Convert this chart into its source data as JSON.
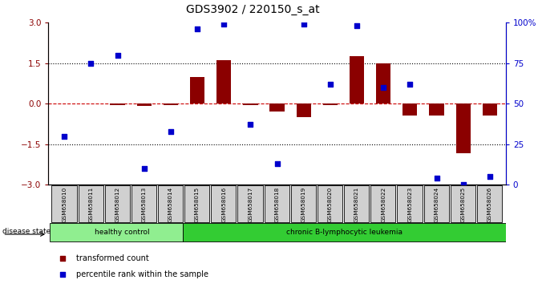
{
  "title": "GDS3902 / 220150_s_at",
  "samples": [
    "GSM658010",
    "GSM658011",
    "GSM658012",
    "GSM658013",
    "GSM658014",
    "GSM658015",
    "GSM658016",
    "GSM658017",
    "GSM658018",
    "GSM658019",
    "GSM658020",
    "GSM658021",
    "GSM658022",
    "GSM658023",
    "GSM658024",
    "GSM658025",
    "GSM658026"
  ],
  "red_values": [
    0.0,
    0.0,
    -0.05,
    -0.08,
    -0.05,
    1.0,
    1.6,
    -0.05,
    -0.3,
    -0.5,
    -0.05,
    1.75,
    1.5,
    -0.45,
    -0.45,
    -1.85,
    -0.45
  ],
  "blue_percentiles": [
    30,
    75,
    80,
    10,
    33,
    96,
    99,
    37,
    13,
    99,
    62,
    98,
    60,
    62,
    4,
    0,
    5
  ],
  "healthy_count": 5,
  "ylim": [
    -3.0,
    3.0
  ],
  "y_ticks_red": [
    -3,
    -1.5,
    0,
    1.5,
    3
  ],
  "y_ticks_blue": [
    0,
    25,
    50,
    75,
    100
  ],
  "red_color": "#8B0000",
  "blue_color": "#0000CC",
  "red_dashed_color": "#CC0000",
  "sample_box_fill": "#D0D0D0",
  "healthy_fill": "#90EE90",
  "disease_fill": "#33CC33",
  "legend_red_label": "transformed count",
  "legend_blue_label": "percentile rank within the sample",
  "disease_state_label": "disease state",
  "healthy_label": "healthy control",
  "disease_label": "chronic B-lymphocytic leukemia"
}
